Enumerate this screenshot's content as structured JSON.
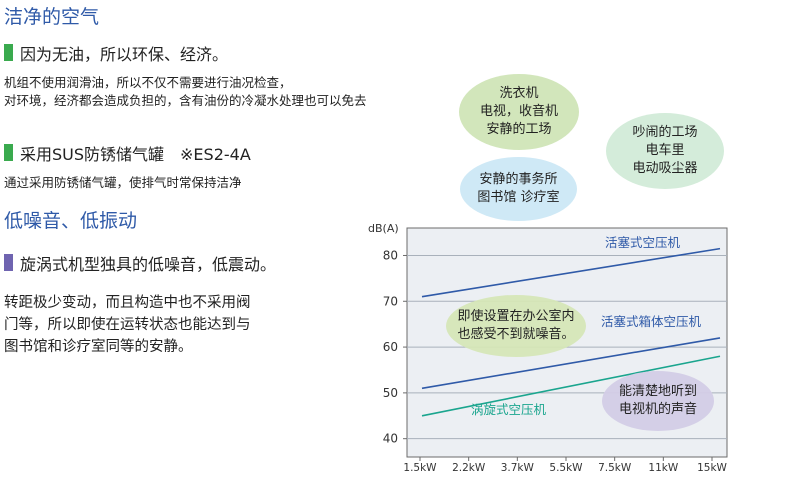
{
  "sections": {
    "clean_air": {
      "title": "洁净的空气"
    },
    "oil_free": {
      "heading": "因为无油，所以环保、经济。",
      "lines": [
        "机组不使用润滑油，所以不仅不需要进行油况检查，",
        "对环境，经济都会造成负担的，含有油份的冷凝水处理也可以免去"
      ]
    },
    "sus_tank": {
      "heading": "采用SUS防锈储气罐　※ES2-4A",
      "line": "通过采用防锈储气罐，使排气时常保持洁净"
    },
    "low_noise": {
      "title": "低噪音、低振动"
    },
    "scroll": {
      "heading": "旋涡式机型独具的低噪音，低震动。",
      "lines": [
        "转距极少变动，而且构造中也不采用阀",
        "门等，所以即使在运转状态也能达到与",
        "图书馆和诊疗室同等的安静。"
      ]
    }
  },
  "colors": {
    "accent_green": "#3aaa4e",
    "accent_purple": "#6f64b0",
    "title_blue": "#2f5aa8",
    "scroll_teal": "#1aa58e"
  },
  "bubbles": {
    "laundry": [
      "洗衣机",
      "电视，收音机",
      "安静的工场"
    ],
    "noisy": [
      "吵闹的工场",
      "电车里",
      "电动吸尘器"
    ],
    "quiet_office": [
      "安静的事务所",
      "图书馆 诊疗室"
    ],
    "office_note": [
      "即使设置在办公室内",
      "也感受不到就噪音。"
    ],
    "tv_note": [
      "能清楚地听到",
      "电视机的声音"
    ]
  },
  "chart_data": {
    "type": "line",
    "ylabel": "dB(A)",
    "yticks": [
      40,
      50,
      60,
      70,
      80
    ],
    "ylim": [
      36,
      86
    ],
    "categories": [
      "1.5kW",
      "2.2kW",
      "3.7kW",
      "5.5kW",
      "7.5kW",
      "11kW",
      "15kW"
    ],
    "series": [
      {
        "name": "活塞式空压机",
        "color": "#2f5aa8",
        "start": 71,
        "end": 81.5
      },
      {
        "name": "活塞式箱体空压机",
        "color": "#2f5aa8",
        "start": 51,
        "end": 62
      },
      {
        "name": "涡旋式空压机",
        "color": "#1aa58e",
        "start": 45,
        "end": 58
      }
    ]
  }
}
